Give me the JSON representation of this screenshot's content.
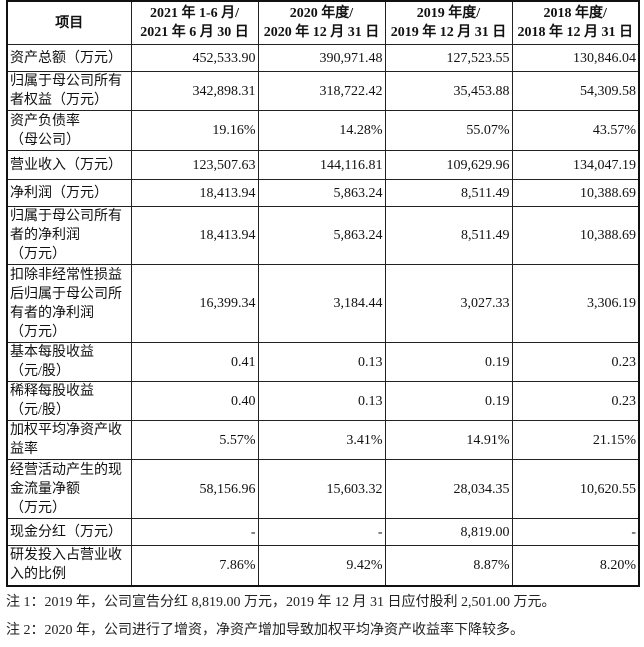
{
  "table": {
    "headers": [
      "项目",
      "2021 年 1-6 月/\n2021 年 6 月 30 日",
      "2020 年度/\n2020 年 12 月 31 日",
      "2019 年度/\n2019 年 12 月 31 日",
      "2018 年度/\n2018 年 12 月 31 日"
    ],
    "rows": [
      {
        "label": "资产总额（万元）",
        "values": [
          "452,533.90",
          "390,971.48",
          "127,523.55",
          "130,846.04"
        ]
      },
      {
        "label": "归属于母公司所有\n者权益（万元）",
        "values": [
          "342,898.31",
          "318,722.42",
          "35,453.88",
          "54,309.58"
        ]
      },
      {
        "label": "资产负债率\n（母公司）",
        "values": [
          "19.16%",
          "14.28%",
          "55.07%",
          "43.57%"
        ]
      },
      {
        "label": "营业收入（万元）",
        "values": [
          "123,507.63",
          "144,116.81",
          "109,629.96",
          "134,047.19"
        ]
      },
      {
        "label": "净利润（万元）",
        "values": [
          "18,413.94",
          "5,863.24",
          "8,511.49",
          "10,388.69"
        ]
      },
      {
        "label": "归属于母公司所有\n者的净利润\n（万元）",
        "values": [
          "18,413.94",
          "5,863.24",
          "8,511.49",
          "10,388.69"
        ]
      },
      {
        "label": "扣除非经常性损益\n后归属于母公司所\n有者的净利润\n（万元）",
        "values": [
          "16,399.34",
          "3,184.44",
          "3,027.33",
          "3,306.19"
        ]
      },
      {
        "label": "基本每股收益\n（元/股）",
        "values": [
          "0.41",
          "0.13",
          "0.19",
          "0.23"
        ]
      },
      {
        "label": "稀释每股收益\n（元/股）",
        "values": [
          "0.40",
          "0.13",
          "0.19",
          "0.23"
        ]
      },
      {
        "label": "加权平均净资产收\n益率",
        "values": [
          "5.57%",
          "3.41%",
          "14.91%",
          "21.15%"
        ]
      },
      {
        "label": "经营活动产生的现\n金流量净额\n（万元）",
        "values": [
          "58,156.96",
          "15,603.32",
          "28,034.35",
          "10,620.55"
        ]
      },
      {
        "label": "现金分红（万元）",
        "values": [
          "-",
          "-",
          "8,819.00",
          "-"
        ]
      },
      {
        "label": "研发投入占营业收\n入的比例",
        "values": [
          "7.86%",
          "9.42%",
          "8.87%",
          "8.20%"
        ]
      }
    ]
  },
  "notes": [
    "注 1：2019 年，公司宣告分红 8,819.00 万元，2019 年 12 月 31 日应付股利 2,501.00 万元。",
    "注 2：2020 年，公司进行了增资，净资产增加导致加权平均净资产收益率下降较多。"
  ]
}
